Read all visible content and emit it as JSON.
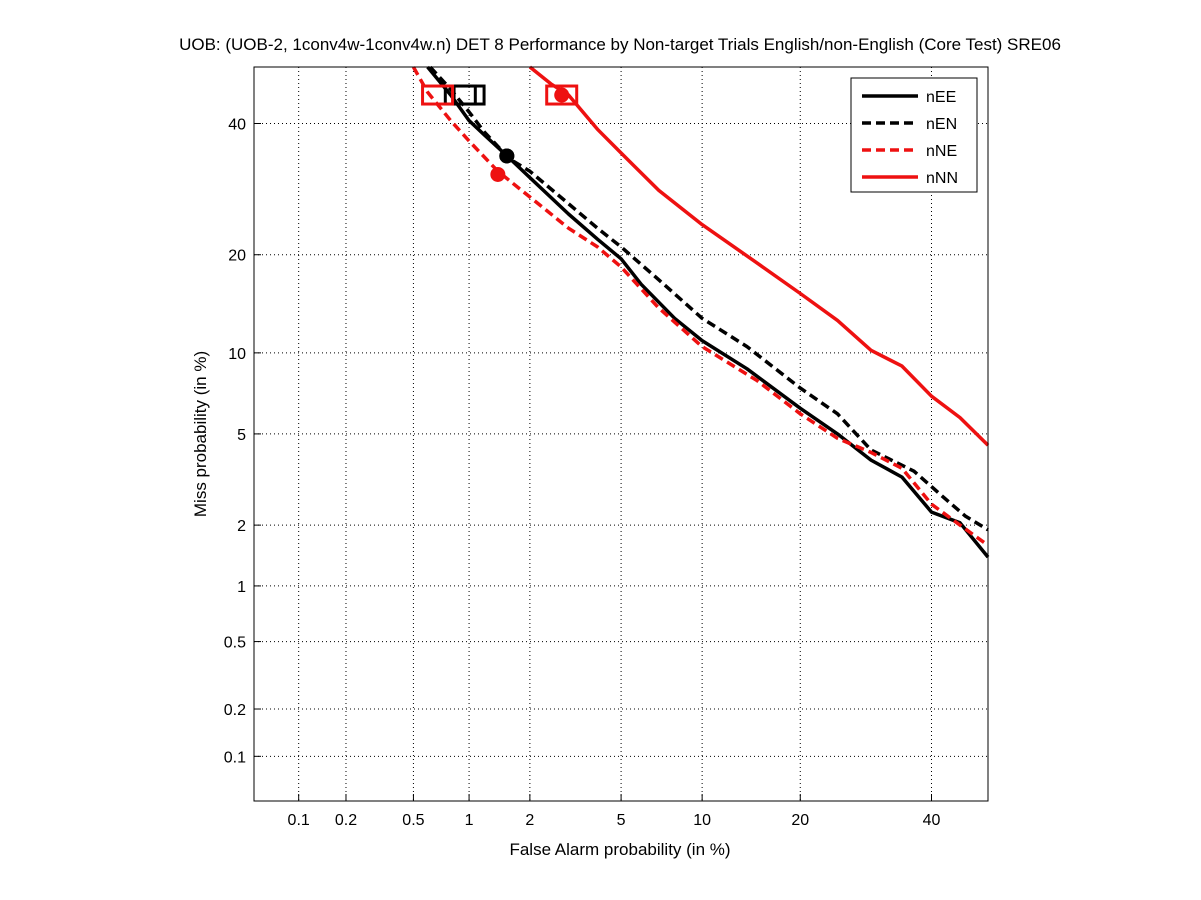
{
  "chart_data": {
    "type": "line",
    "title": "UOB: (UOB-2, 1conv4w-1conv4w.n) DET 8 Performance by Non-target Trials English/non-English (Core Test) SRE06",
    "xlabel": "False Alarm probability (in %)",
    "ylabel": "Miss probability (in %)",
    "scale": "probit (normal deviate)",
    "xlim": [
      0.05,
      50
    ],
    "ylim": [
      0.05,
      50
    ],
    "grid": true,
    "legend_position": "top-right",
    "x_ticks": [
      {
        "value": 0.1,
        "label": "0.1"
      },
      {
        "value": 0.2,
        "label": "0.2"
      },
      {
        "value": 0.5,
        "label": "0.5"
      },
      {
        "value": 1,
        "label": "1"
      },
      {
        "value": 2,
        "label": "2"
      },
      {
        "value": 5,
        "label": "5"
      },
      {
        "value": 10,
        "label": "10"
      },
      {
        "value": 20,
        "label": "20"
      },
      {
        "value": 40,
        "label": "40"
      }
    ],
    "y_ticks": [
      {
        "value": 0.1,
        "label": "0.1"
      },
      {
        "value": 0.2,
        "label": "0.2"
      },
      {
        "value": 0.5,
        "label": "0.5"
      },
      {
        "value": 1,
        "label": "1"
      },
      {
        "value": 2,
        "label": "2"
      },
      {
        "value": 5,
        "label": "5"
      },
      {
        "value": 10,
        "label": "10"
      },
      {
        "value": 20,
        "label": "20"
      },
      {
        "value": 40,
        "label": "40"
      }
    ],
    "series": [
      {
        "name": "nEE",
        "color": "#000000",
        "dash": "solid",
        "points": [
          [
            0.6,
            50
          ],
          [
            0.8,
            45
          ],
          [
            1.0,
            40.5
          ],
          [
            1.2,
            38
          ],
          [
            1.5,
            35
          ],
          [
            2,
            31
          ],
          [
            3,
            25.5
          ],
          [
            4,
            22
          ],
          [
            5,
            19.5
          ],
          [
            6,
            16.5
          ],
          [
            8,
            13
          ],
          [
            10,
            11
          ],
          [
            14,
            8.8
          ],
          [
            20,
            6.3
          ],
          [
            25,
            5
          ],
          [
            30,
            3.9
          ],
          [
            35,
            3.3
          ],
          [
            40,
            2.3
          ],
          [
            45,
            2.05
          ],
          [
            50,
            1.4
          ]
        ],
        "min_dcf": [
          1.55,
          34.5
        ],
        "act_dcf": [
          0.9,
          45
        ]
      },
      {
        "name": "nEN",
        "color": "#000000",
        "dash": "dashed",
        "points": [
          [
            0.62,
            50
          ],
          [
            0.8,
            46
          ],
          [
            1.0,
            42
          ],
          [
            1.2,
            38.5
          ],
          [
            1.6,
            34
          ],
          [
            2,
            32
          ],
          [
            3,
            27
          ],
          [
            4,
            23.5
          ],
          [
            5,
            21
          ],
          [
            7,
            17
          ],
          [
            10,
            13
          ],
          [
            14,
            10.5
          ],
          [
            20,
            7.5
          ],
          [
            25,
            6
          ],
          [
            30,
            4.3
          ],
          [
            37,
            3.5
          ],
          [
            42,
            2.7
          ],
          [
            46,
            2.2
          ],
          [
            50,
            1.9
          ]
        ],
        "min_dcf": [
          1.55,
          34.5
        ],
        "act_dcf": [
          1.0,
          45
        ]
      },
      {
        "name": "nNE",
        "color": "#ee1111",
        "dash": "dashed",
        "points": [
          [
            0.5,
            50
          ],
          [
            0.6,
            45.5
          ],
          [
            0.8,
            40.5
          ],
          [
            1.0,
            37
          ],
          [
            1.4,
            32
          ],
          [
            2,
            28
          ],
          [
            3,
            23.5
          ],
          [
            4,
            21
          ],
          [
            5,
            18.5
          ],
          [
            7,
            14
          ],
          [
            10,
            10.5
          ],
          [
            15,
            8
          ],
          [
            20,
            6
          ],
          [
            25,
            4.8
          ],
          [
            30,
            4.2
          ],
          [
            35,
            3.6
          ],
          [
            40,
            2.5
          ],
          [
            45,
            2.0
          ],
          [
            50,
            1.6
          ]
        ],
        "min_dcf": [
          1.4,
          31.5
        ],
        "act_dcf": [
          0.68,
          45
        ]
      },
      {
        "name": "nNN",
        "color": "#ee1111",
        "dash": "solid",
        "points": [
          [
            2,
            50
          ],
          [
            2.5,
            47
          ],
          [
            3,
            45
          ],
          [
            4,
            39
          ],
          [
            5,
            35
          ],
          [
            7,
            29
          ],
          [
            10,
            24
          ],
          [
            15,
            19
          ],
          [
            20,
            15.5
          ],
          [
            25,
            12.8
          ],
          [
            30,
            10.2
          ],
          [
            35,
            9
          ],
          [
            40,
            7
          ],
          [
            45,
            5.8
          ],
          [
            50,
            4.5
          ]
        ],
        "min_dcf": [
          2.8,
          45
        ],
        "act_dcf": [
          2.8,
          45
        ]
      }
    ]
  }
}
